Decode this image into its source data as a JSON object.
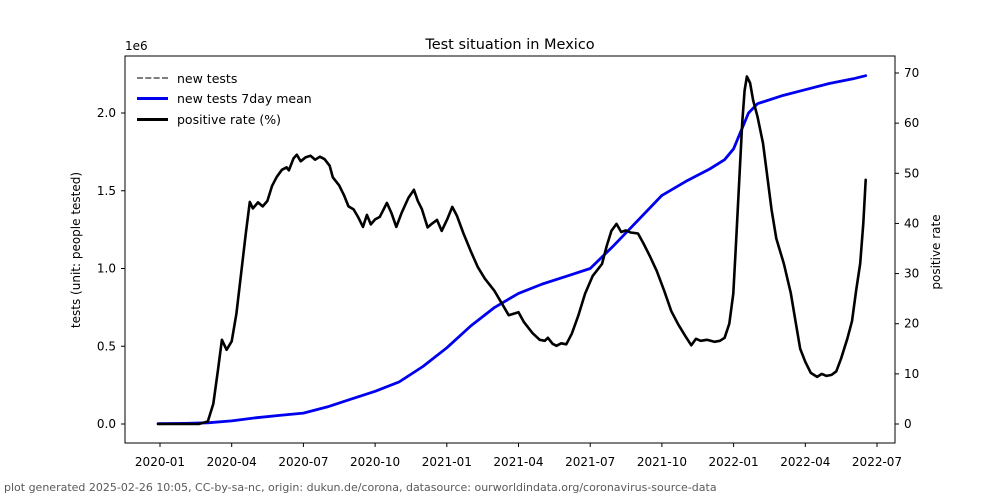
{
  "title": "Test situation in Mexico",
  "footer": "plot generated 2025-02-26 10:05, CC-by-sa-nc, origin: dukun.de/corona, datasource: ourworldindata.org/coronavirus-source-data",
  "colors": {
    "tests_mean_line": "#0000ee",
    "positive_rate_line": "#000000",
    "new_tests_raw_line": "#7f7f7f",
    "footer_text": "#5a5a5a",
    "axis": "#000000",
    "background": "#ffffff"
  },
  "chart_data": {
    "type": "line",
    "title": "Test situation in Mexico",
    "grid": false,
    "legend_position": "upper-left",
    "x_ticks": [
      "2020-01",
      "2020-04",
      "2020-07",
      "2020-10",
      "2021-01",
      "2021-04",
      "2021-07",
      "2021-10",
      "2022-01",
      "2022-04",
      "2022-07"
    ],
    "left_axis": {
      "label": "tests (unit: people tested)",
      "offset_text": "1e6",
      "ticks": [
        "0.0",
        "0.5",
        "1.0",
        "1.5",
        "2.0"
      ],
      "unit": "1e6 people tested, cumulative"
    },
    "right_axis": {
      "label": "positive rate",
      "ticks": [
        "0",
        "10",
        "20",
        "30",
        "40",
        "50",
        "60",
        "70"
      ],
      "unit": "percent"
    },
    "legend": [
      {
        "label": "new tests",
        "color": "#7f7f7f",
        "style": "dashed"
      },
      {
        "label": "new tests 7day mean",
        "color": "#0000ee",
        "style": "solid"
      },
      {
        "label": "positive rate (%)",
        "color": "#000000",
        "style": "solid"
      }
    ],
    "series": [
      {
        "name": "new tests 7day mean",
        "axis": "left",
        "color": "#0000ee",
        "width": 2.8,
        "points": [
          [
            "2019-12-29",
            0.002
          ],
          [
            "2020-02-01",
            0.004
          ],
          [
            "2020-03-01",
            0.008
          ],
          [
            "2020-04-01",
            0.02
          ],
          [
            "2020-05-01",
            0.04
          ],
          [
            "2020-06-01",
            0.055
          ],
          [
            "2020-07-01",
            0.07
          ],
          [
            "2020-08-01",
            0.11
          ],
          [
            "2020-09-01",
            0.16
          ],
          [
            "2020-10-01",
            0.21
          ],
          [
            "2020-11-01",
            0.27
          ],
          [
            "2020-12-01",
            0.37
          ],
          [
            "2021-01-01",
            0.49
          ],
          [
            "2021-02-01",
            0.63
          ],
          [
            "2021-03-01",
            0.75
          ],
          [
            "2021-04-01",
            0.84
          ],
          [
            "2021-05-01",
            0.9
          ],
          [
            "2021-06-01",
            0.95
          ],
          [
            "2021-07-01",
            1.0
          ],
          [
            "2021-08-01",
            1.15
          ],
          [
            "2021-09-01",
            1.31
          ],
          [
            "2021-10-01",
            1.47
          ],
          [
            "2021-11-01",
            1.56
          ],
          [
            "2021-12-01",
            1.64
          ],
          [
            "2021-12-20",
            1.7
          ],
          [
            "2022-01-01",
            1.77
          ],
          [
            "2022-01-10",
            1.88
          ],
          [
            "2022-01-20",
            2.0
          ],
          [
            "2022-02-01",
            2.06
          ],
          [
            "2022-03-01",
            2.11
          ],
          [
            "2022-04-01",
            2.15
          ],
          [
            "2022-05-01",
            2.19
          ],
          [
            "2022-06-01",
            2.22
          ],
          [
            "2022-06-17",
            2.24
          ]
        ]
      },
      {
        "name": "positive rate (%)",
        "axis": "right",
        "color": "#000000",
        "width": 2.6,
        "points": [
          [
            "2019-12-29",
            0
          ],
          [
            "2020-02-20",
            0
          ],
          [
            "2020-03-01",
            0.5
          ],
          [
            "2020-03-08",
            4
          ],
          [
            "2020-03-14",
            10.8
          ],
          [
            "2020-03-19",
            16.8
          ],
          [
            "2020-03-25",
            14.8
          ],
          [
            "2020-04-01",
            16.5
          ],
          [
            "2020-04-07",
            22
          ],
          [
            "2020-04-13",
            30
          ],
          [
            "2020-04-19",
            38
          ],
          [
            "2020-04-24",
            44.3
          ],
          [
            "2020-04-28",
            43.0
          ],
          [
            "2020-05-04",
            44.2
          ],
          [
            "2020-05-10",
            43.4
          ],
          [
            "2020-05-16",
            44.5
          ],
          [
            "2020-05-22",
            47.5
          ],
          [
            "2020-05-28",
            49.3
          ],
          [
            "2020-06-04",
            50.7
          ],
          [
            "2020-06-10",
            51.2
          ],
          [
            "2020-06-13",
            50.6
          ],
          [
            "2020-06-19",
            53.0
          ],
          [
            "2020-06-23",
            53.7
          ],
          [
            "2020-06-28",
            52.4
          ],
          [
            "2020-07-04",
            53.2
          ],
          [
            "2020-07-10",
            53.5
          ],
          [
            "2020-07-16",
            52.7
          ],
          [
            "2020-07-22",
            53.3
          ],
          [
            "2020-07-28",
            52.8
          ],
          [
            "2020-08-04",
            51.5
          ],
          [
            "2020-08-08",
            49.2
          ],
          [
            "2020-08-16",
            47.6
          ],
          [
            "2020-08-22",
            45.7
          ],
          [
            "2020-08-28",
            43.4
          ],
          [
            "2020-09-04",
            42.8
          ],
          [
            "2020-09-10",
            41.2
          ],
          [
            "2020-09-16",
            39.3
          ],
          [
            "2020-09-21",
            41.7
          ],
          [
            "2020-09-26",
            39.8
          ],
          [
            "2020-10-01",
            40.8
          ],
          [
            "2020-10-07",
            41.3
          ],
          [
            "2020-10-16",
            44.1
          ],
          [
            "2020-10-22",
            42.0
          ],
          [
            "2020-10-28",
            39.3
          ],
          [
            "2020-11-04",
            42.0
          ],
          [
            "2020-11-13",
            45.1
          ],
          [
            "2020-11-20",
            46.7
          ],
          [
            "2020-11-25",
            44.5
          ],
          [
            "2020-11-30",
            42.9
          ],
          [
            "2020-12-07",
            39.2
          ],
          [
            "2020-12-13",
            40.0
          ],
          [
            "2020-12-19",
            40.7
          ],
          [
            "2020-12-25",
            38.5
          ],
          [
            "2021-01-02",
            41.0
          ],
          [
            "2021-01-08",
            43.3
          ],
          [
            "2021-01-14",
            41.5
          ],
          [
            "2021-01-22",
            38.1
          ],
          [
            "2021-02-01",
            34.5
          ],
          [
            "2021-02-10",
            31.3
          ],
          [
            "2021-02-19",
            29.0
          ],
          [
            "2021-03-01",
            26.5
          ],
          [
            "2021-03-10",
            24.1
          ],
          [
            "2021-03-19",
            21.7
          ],
          [
            "2021-04-01",
            22.3
          ],
          [
            "2021-04-08",
            20.3
          ],
          [
            "2021-04-19",
            18.1
          ],
          [
            "2021-04-28",
            16.8
          ],
          [
            "2021-05-04",
            16.6
          ],
          [
            "2021-05-08",
            17.2
          ],
          [
            "2021-05-14",
            16.0
          ],
          [
            "2021-05-19",
            15.6
          ],
          [
            "2021-05-25",
            16.1
          ],
          [
            "2021-06-01",
            15.9
          ],
          [
            "2021-06-08",
            18.0
          ],
          [
            "2021-06-16",
            21.5
          ],
          [
            "2021-06-25",
            26.0
          ],
          [
            "2021-07-04",
            29.5
          ],
          [
            "2021-07-16",
            31.9
          ],
          [
            "2021-07-22",
            35.5
          ],
          [
            "2021-07-28",
            38.5
          ],
          [
            "2021-08-04",
            39.9
          ],
          [
            "2021-08-10",
            38.3
          ],
          [
            "2021-08-16",
            38.6
          ],
          [
            "2021-08-22",
            38.2
          ],
          [
            "2021-09-01",
            38.0
          ],
          [
            "2021-09-08",
            36.0
          ],
          [
            "2021-09-16",
            33.5
          ],
          [
            "2021-09-25",
            30.5
          ],
          [
            "2021-10-04",
            26.5
          ],
          [
            "2021-10-13",
            22.5
          ],
          [
            "2021-10-22",
            19.8
          ],
          [
            "2021-11-01",
            17.4
          ],
          [
            "2021-11-08",
            15.7
          ],
          [
            "2021-11-14",
            17.0
          ],
          [
            "2021-11-20",
            16.6
          ],
          [
            "2021-11-28",
            16.8
          ],
          [
            "2021-12-07",
            16.4
          ],
          [
            "2021-12-14",
            16.6
          ],
          [
            "2021-12-20",
            17.2
          ],
          [
            "2021-12-26",
            20.0
          ],
          [
            "2021-12-31",
            26.0
          ],
          [
            "2022-01-04",
            36.0
          ],
          [
            "2022-01-08",
            48.0
          ],
          [
            "2022-01-12",
            60.0
          ],
          [
            "2022-01-15",
            66.5
          ],
          [
            "2022-01-18",
            69.3
          ],
          [
            "2022-01-22",
            68.0
          ],
          [
            "2022-01-26",
            64.5
          ],
          [
            "2022-02-01",
            61.3
          ],
          [
            "2022-02-08",
            56.0
          ],
          [
            "2022-02-13",
            50.0
          ],
          [
            "2022-02-19",
            42.7
          ],
          [
            "2022-02-25",
            37.0
          ],
          [
            "2022-03-04",
            32.0
          ],
          [
            "2022-03-13",
            26.1
          ],
          [
            "2022-03-19",
            20.5
          ],
          [
            "2022-03-25",
            15.0
          ],
          [
            "2022-04-01",
            12.4
          ],
          [
            "2022-04-08",
            10.2
          ],
          [
            "2022-04-16",
            9.4
          ],
          [
            "2022-04-22",
            10.0
          ],
          [
            "2022-04-28",
            9.6
          ],
          [
            "2022-05-04",
            9.8
          ],
          [
            "2022-05-10",
            10.5
          ],
          [
            "2022-05-16",
            13.0
          ],
          [
            "2022-05-24",
            17.0
          ],
          [
            "2022-05-30",
            20.5
          ],
          [
            "2022-06-05",
            26.7
          ],
          [
            "2022-06-10",
            32.0
          ],
          [
            "2022-06-14",
            40.0
          ],
          [
            "2022-06-17",
            48.7
          ]
        ]
      }
    ]
  }
}
